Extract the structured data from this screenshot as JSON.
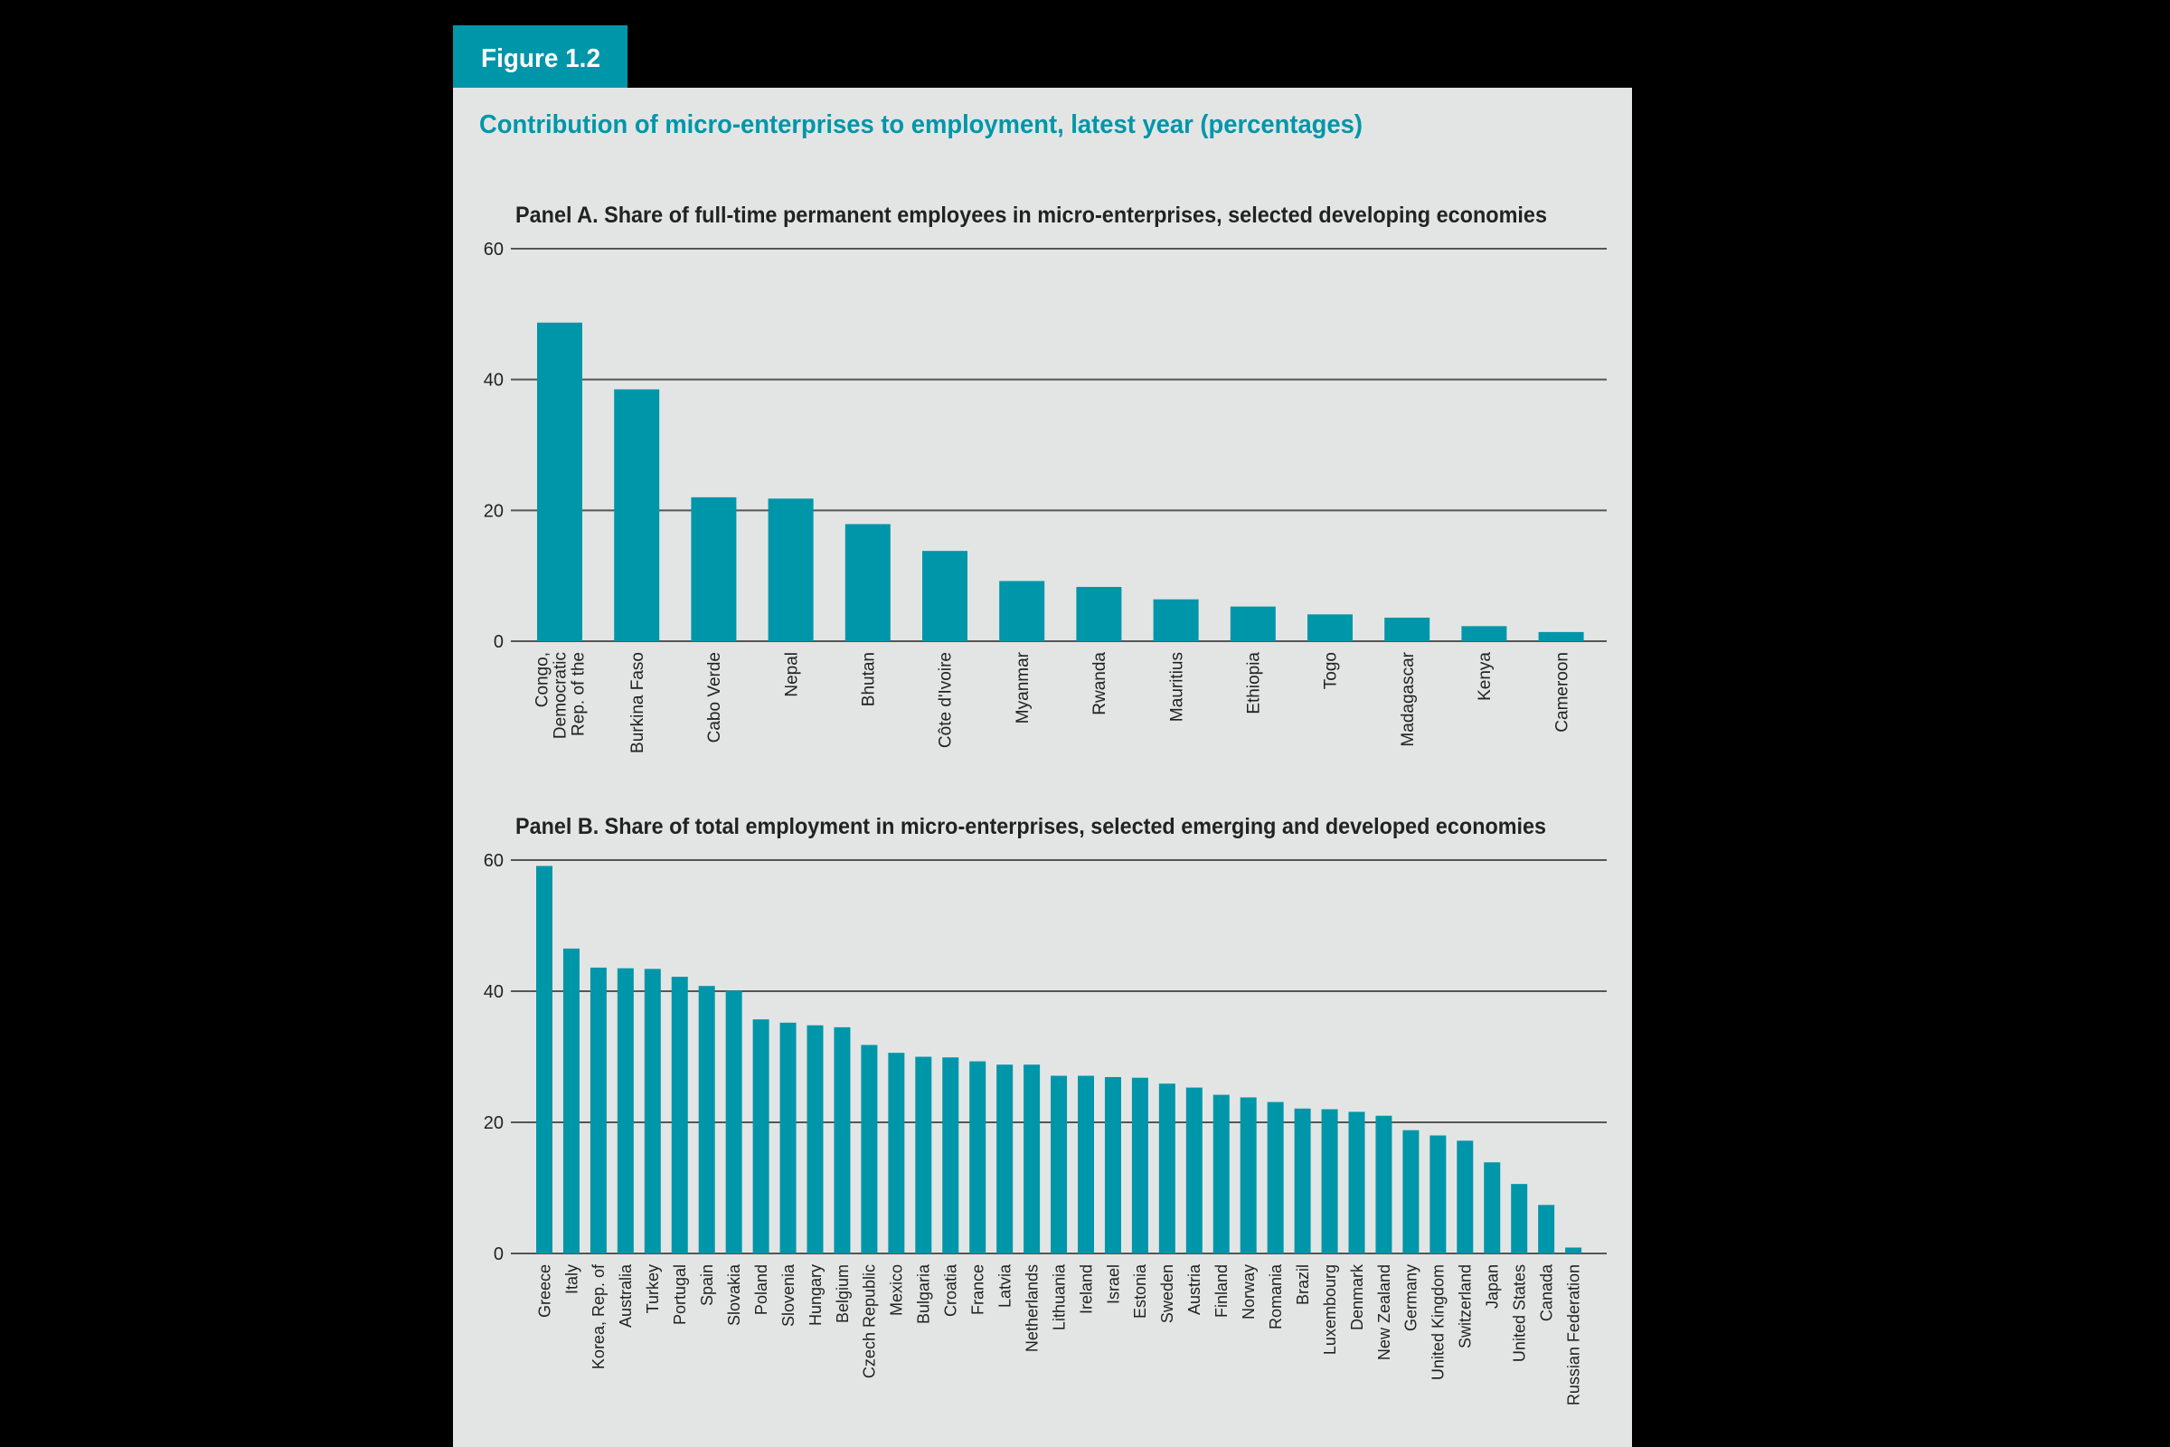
{
  "figure_label": "Figure 1.2",
  "title": "Contribution of micro-enterprises to employment, latest year (percentages)",
  "colors": {
    "accent": "#0096a9",
    "panel_bg": "#e3e5e4",
    "bar": "#0096a9",
    "grid": "#555555",
    "background": "#000000"
  },
  "chart_data": [
    {
      "type": "bar",
      "title": "Panel A.  Share of full-time permanent employees in micro-enterprises, selected developing economies",
      "xlabel": "",
      "ylabel": "",
      "ylim": [
        0,
        60
      ],
      "yticks": [
        0,
        20,
        40,
        60
      ],
      "grid": true,
      "categories": [
        "Congo, Democratic Rep. of the",
        "Burkina Faso",
        "Cabo Verde",
        "Nepal",
        "Bhutan",
        "Côte d'Ivoire",
        "Myanmar",
        "Rwanda",
        "Mauritius",
        "Ethiopia",
        "Togo",
        "Madagascar",
        "Kenya",
        "Cameroon"
      ],
      "values": [
        48.7,
        38.5,
        22.0,
        21.8,
        17.9,
        13.8,
        9.2,
        8.3,
        6.4,
        5.3,
        4.1,
        3.6,
        2.3,
        1.4
      ]
    },
    {
      "type": "bar",
      "title": "Panel B.  Share of total employment in micro-enterprises, selected emerging and developed economies",
      "xlabel": "",
      "ylabel": "",
      "ylim": [
        0,
        60
      ],
      "yticks": [
        0,
        20,
        40,
        60
      ],
      "grid": true,
      "categories": [
        "Greece",
        "Italy",
        "Korea, Rep. of",
        "Australia",
        "Turkey",
        "Portugal",
        "Spain",
        "Slovakia",
        "Poland",
        "Slovenia",
        "Hungary",
        "Belgium",
        "Czech Republic",
        "Mexico",
        "Bulgaria",
        "Croatia",
        "France",
        "Latvia",
        "Netherlands",
        "Lithuania",
        "Ireland",
        "Israel",
        "Estonia",
        "Sweden",
        "Austria",
        "Finland",
        "Norway",
        "Romania",
        "Brazil",
        "Luxembourg",
        "Denmark",
        "New Zealand",
        "Germany",
        "United Kingdom",
        "Switzerland",
        "Japan",
        "United States",
        "Canada",
        "Russian Federation"
      ],
      "values": [
        59.1,
        46.5,
        43.6,
        43.5,
        43.4,
        42.2,
        40.8,
        40.1,
        35.7,
        35.2,
        34.8,
        34.5,
        31.8,
        30.6,
        30.0,
        29.9,
        29.3,
        28.8,
        28.8,
        27.1,
        27.1,
        26.9,
        26.8,
        25.9,
        25.3,
        24.2,
        23.8,
        23.1,
        22.1,
        22.0,
        21.6,
        21.0,
        18.8,
        18.0,
        17.2,
        13.9,
        10.6,
        7.4,
        0.9
      ]
    }
  ]
}
